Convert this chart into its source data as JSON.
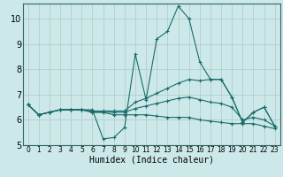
{
  "xlabel": "Humidex (Indice chaleur)",
  "xlim": [
    -0.5,
    23.5
  ],
  "ylim": [
    5,
    10.6
  ],
  "yticks": [
    5,
    6,
    7,
    8,
    9,
    10
  ],
  "xticks": [
    0,
    1,
    2,
    3,
    4,
    5,
    6,
    7,
    8,
    9,
    10,
    11,
    12,
    13,
    14,
    15,
    16,
    17,
    18,
    19,
    20,
    21,
    22,
    23
  ],
  "bg_color": "#cce8e8",
  "grid_color": "#b0c8c8",
  "line_color": "#1a6b6b",
  "lines": [
    {
      "x": [
        0,
        1,
        2,
        3,
        4,
        5,
        6,
        7,
        8,
        9,
        10,
        11,
        12,
        13,
        14,
        15,
        16,
        17,
        18,
        19,
        20,
        21,
        22,
        23
      ],
      "y": [
        6.6,
        6.2,
        6.3,
        6.4,
        6.4,
        6.4,
        6.4,
        5.25,
        5.3,
        5.7,
        8.6,
        6.8,
        9.2,
        9.5,
        10.5,
        10.0,
        8.3,
        7.6,
        7.6,
        6.9,
        5.9,
        6.3,
        6.5,
        5.75
      ]
    },
    {
      "x": [
        0,
        1,
        2,
        3,
        4,
        5,
        6,
        7,
        8,
        9,
        10,
        11,
        12,
        13,
        14,
        15,
        16,
        17,
        18,
        19,
        20,
        21,
        22,
        23
      ],
      "y": [
        6.6,
        6.2,
        6.3,
        6.4,
        6.4,
        6.4,
        6.35,
        6.35,
        6.35,
        6.35,
        6.7,
        6.85,
        7.05,
        7.25,
        7.45,
        7.6,
        7.55,
        7.6,
        7.6,
        6.9,
        5.9,
        6.3,
        6.5,
        5.75
      ]
    },
    {
      "x": [
        0,
        1,
        2,
        3,
        4,
        5,
        6,
        7,
        8,
        9,
        10,
        11,
        12,
        13,
        14,
        15,
        16,
        17,
        18,
        19,
        20,
        21,
        22,
        23
      ],
      "y": [
        6.6,
        6.2,
        6.3,
        6.4,
        6.4,
        6.4,
        6.3,
        6.3,
        6.3,
        6.3,
        6.45,
        6.55,
        6.65,
        6.75,
        6.85,
        6.9,
        6.8,
        6.7,
        6.65,
        6.5,
        6.0,
        6.1,
        6.0,
        5.75
      ]
    },
    {
      "x": [
        0,
        1,
        2,
        3,
        4,
        5,
        6,
        7,
        8,
        9,
        10,
        11,
        12,
        13,
        14,
        15,
        16,
        17,
        18,
        19,
        20,
        21,
        22,
        23
      ],
      "y": [
        6.6,
        6.2,
        6.3,
        6.4,
        6.4,
        6.4,
        6.3,
        6.3,
        6.2,
        6.2,
        6.2,
        6.2,
        6.15,
        6.1,
        6.1,
        6.1,
        6.0,
        5.95,
        5.9,
        5.85,
        5.85,
        5.85,
        5.75,
        5.65
      ]
    }
  ]
}
